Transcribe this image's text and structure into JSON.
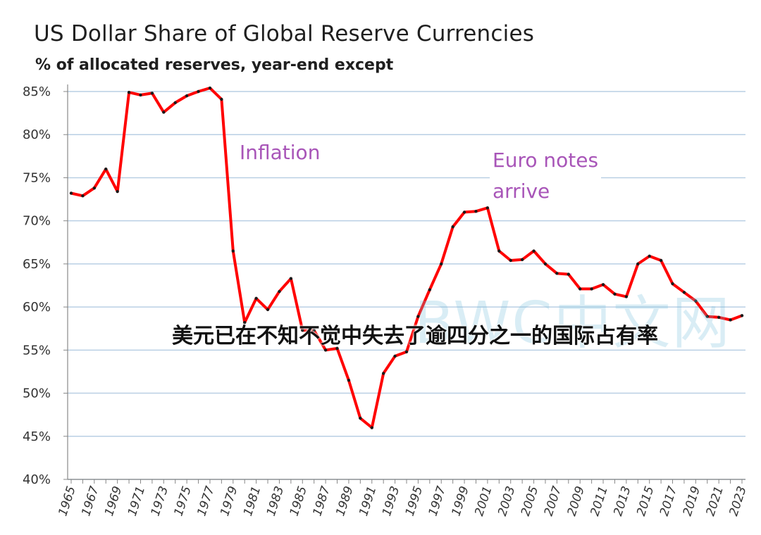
{
  "title": "US Dollar Share of Global  Reserve Currencies",
  "subtitle": "% of allocated reserves, year-end except",
  "watermark": "BWC中文网",
  "overlay_caption": "美元已在不知不觉中失去了逾四分之一的国际占有率",
  "colors": {
    "line": "#ff0000",
    "marker": "#1a1a1a",
    "grid": "#b9cfe4",
    "annotation": "#a855b8"
  },
  "chart_data": {
    "type": "line",
    "title": "US Dollar Share of Global  Reserve Currencies",
    "subtitle": "% of allocated reserves, year-end except",
    "ylim": [
      40,
      85
    ],
    "yticks": [
      "40%",
      "45%",
      "50%",
      "55%",
      "60%",
      "65%",
      "70%",
      "75%",
      "80%",
      "85%"
    ],
    "xticks": [
      "1965",
      "1967",
      "1969",
      "1971",
      "1973",
      "1975",
      "1977",
      "1979",
      "1981",
      "1983",
      "1985",
      "1987",
      "1989",
      "1991",
      "1993",
      "1995",
      "1997",
      "1999",
      "2001",
      "2003",
      "2005",
      "2007",
      "2009",
      "2011",
      "2013",
      "2015",
      "2017",
      "2019",
      "2021",
      "2023"
    ],
    "grid": "horizontal",
    "annotations": [
      {
        "text": "Inflation"
      },
      {
        "text": "Euro notes\narrive"
      }
    ],
    "x": [
      1965,
      1966,
      1967,
      1968,
      1969,
      1970,
      1971,
      1972,
      1973,
      1974,
      1975,
      1976,
      1977,
      1978,
      1979,
      1980,
      1981,
      1982,
      1983,
      1984,
      1985,
      1986,
      1987,
      1988,
      1989,
      1990,
      1991,
      1992,
      1993,
      1994,
      1995,
      1996,
      1997,
      1998,
      1999,
      2000,
      2001,
      2002,
      2003,
      2004,
      2005,
      2006,
      2007,
      2008,
      2009,
      2010,
      2011,
      2012,
      2013,
      2014,
      2015,
      2016,
      2017,
      2018,
      2019,
      2020,
      2021,
      2022,
      2023
    ],
    "y": [
      73.2,
      72.9,
      73.8,
      76.0,
      73.4,
      84.9,
      84.6,
      84.8,
      82.6,
      83.7,
      84.5,
      85.0,
      85.4,
      84.1,
      66.5,
      58.2,
      61.0,
      59.7,
      61.8,
      63.3,
      57.3,
      57.3,
      55.0,
      55.2,
      51.5,
      47.1,
      46.0,
      52.3,
      54.3,
      54.8,
      58.9,
      62.0,
      65.0,
      69.3,
      71.0,
      71.1,
      71.5,
      66.5,
      65.4,
      65.5,
      66.5,
      65.0,
      63.9,
      63.8,
      62.1,
      62.1,
      62.6,
      61.5,
      61.2,
      65.0,
      65.9,
      65.4,
      62.7,
      61.7,
      60.7,
      58.9,
      58.8,
      58.5,
      59.0
    ]
  }
}
